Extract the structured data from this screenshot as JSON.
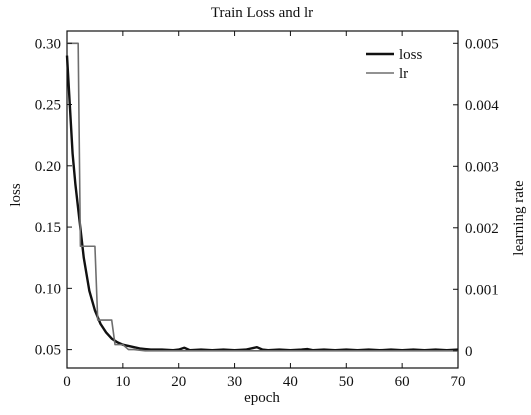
{
  "chart_data": {
    "type": "line",
    "title": "Train Loss and lr",
    "xlabel": "epoch",
    "ylabel": "loss",
    "y2label": "learning rate",
    "xlim": [
      0,
      70
    ],
    "ylim": [
      0.035,
      0.31
    ],
    "y2lim": [
      -0.00028,
      0.0052
    ],
    "xticks": [
      "0",
      "10",
      "20",
      "30",
      "40",
      "50",
      "60",
      "70"
    ],
    "yticks": [
      "0.05",
      "0.10",
      "0.15",
      "0.20",
      "0.25",
      "0.30"
    ],
    "y2ticks": [
      "0",
      "0.001",
      "0.002",
      "0.003",
      "0.004",
      "0.005"
    ],
    "grid": false,
    "legend_position": "top-right",
    "series": [
      {
        "name": "loss",
        "axis": "left",
        "color": "#111111",
        "x": [
          0,
          0.5,
          1,
          1.5,
          2,
          3,
          4,
          5,
          6,
          7,
          8,
          9,
          10,
          11,
          12,
          13,
          14,
          15,
          17,
          19,
          20,
          21,
          22,
          24,
          26,
          28,
          30,
          32,
          34,
          35,
          36,
          38,
          40,
          42,
          43,
          44,
          46,
          48,
          50,
          52,
          54,
          56,
          58,
          60,
          62,
          64,
          66,
          68,
          70
        ],
        "y": [
          0.29,
          0.25,
          0.21,
          0.185,
          0.165,
          0.125,
          0.098,
          0.082,
          0.071,
          0.064,
          0.059,
          0.056,
          0.054,
          0.053,
          0.052,
          0.051,
          0.0505,
          0.05,
          0.05,
          0.0495,
          0.05,
          0.0515,
          0.0495,
          0.05,
          0.0495,
          0.05,
          0.0495,
          0.05,
          0.052,
          0.05,
          0.0495,
          0.05,
          0.0495,
          0.05,
          0.0505,
          0.0495,
          0.05,
          0.0495,
          0.05,
          0.0495,
          0.05,
          0.0495,
          0.05,
          0.0495,
          0.05,
          0.0495,
          0.05,
          0.0495,
          0.05
        ]
      },
      {
        "name": "lr",
        "axis": "right",
        "color": "#6e6e6e",
        "x": [
          0,
          1,
          2,
          2.4,
          3,
          4,
          5,
          5.5,
          6,
          7,
          8,
          8.6,
          9,
          10,
          11,
          12,
          14,
          16,
          20,
          25,
          30,
          35,
          40,
          45,
          50,
          55,
          60,
          65,
          70
        ],
        "y": [
          0.005,
          0.005,
          0.005,
          0.0017,
          0.0017,
          0.0017,
          0.0017,
          0.0005,
          0.0005,
          0.0005,
          0.0005,
          0.0001,
          0.0001,
          0.0001,
          2e-05,
          2e-05,
          0.0,
          0.0,
          0.0,
          0.0,
          0.0,
          0.0,
          0.0,
          0.0,
          0.0,
          0.0,
          0.0,
          0.0,
          0.0
        ]
      }
    ]
  }
}
